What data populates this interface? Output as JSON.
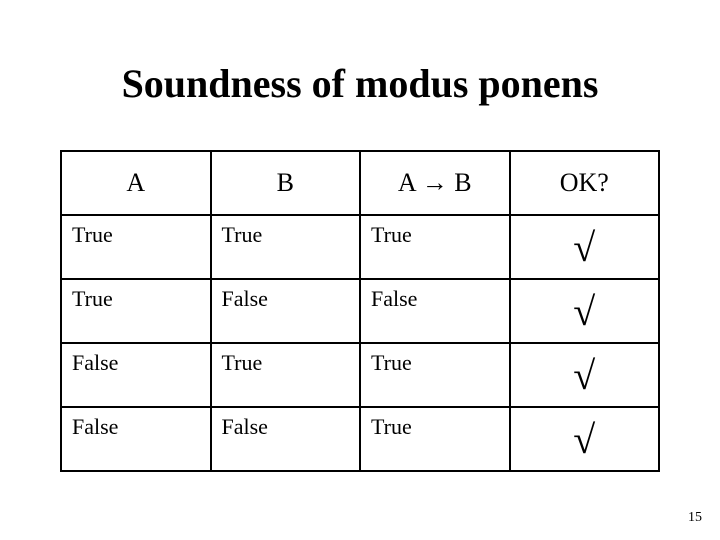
{
  "title": "Soundness of modus ponens",
  "page_number": "15",
  "table": {
    "columns": [
      "A",
      "B",
      "A → B",
      "OK?"
    ],
    "rows": [
      {
        "a": "True",
        "b": "True",
        "ab": "True",
        "ok": "√"
      },
      {
        "a": "True",
        "b": "False",
        "ab": "False",
        "ok": "√"
      },
      {
        "a": "False",
        "b": "True",
        "ab": "True",
        "ok": "√"
      },
      {
        "a": "False",
        "b": "False",
        "ab": "True",
        "ok": "√"
      }
    ],
    "border_color": "#000000",
    "text_color": "#000000",
    "background_color": "#ffffff",
    "title_fontsize": 40,
    "header_fontsize": 26,
    "cell_fontsize": 22,
    "check_fontsize": 40
  }
}
